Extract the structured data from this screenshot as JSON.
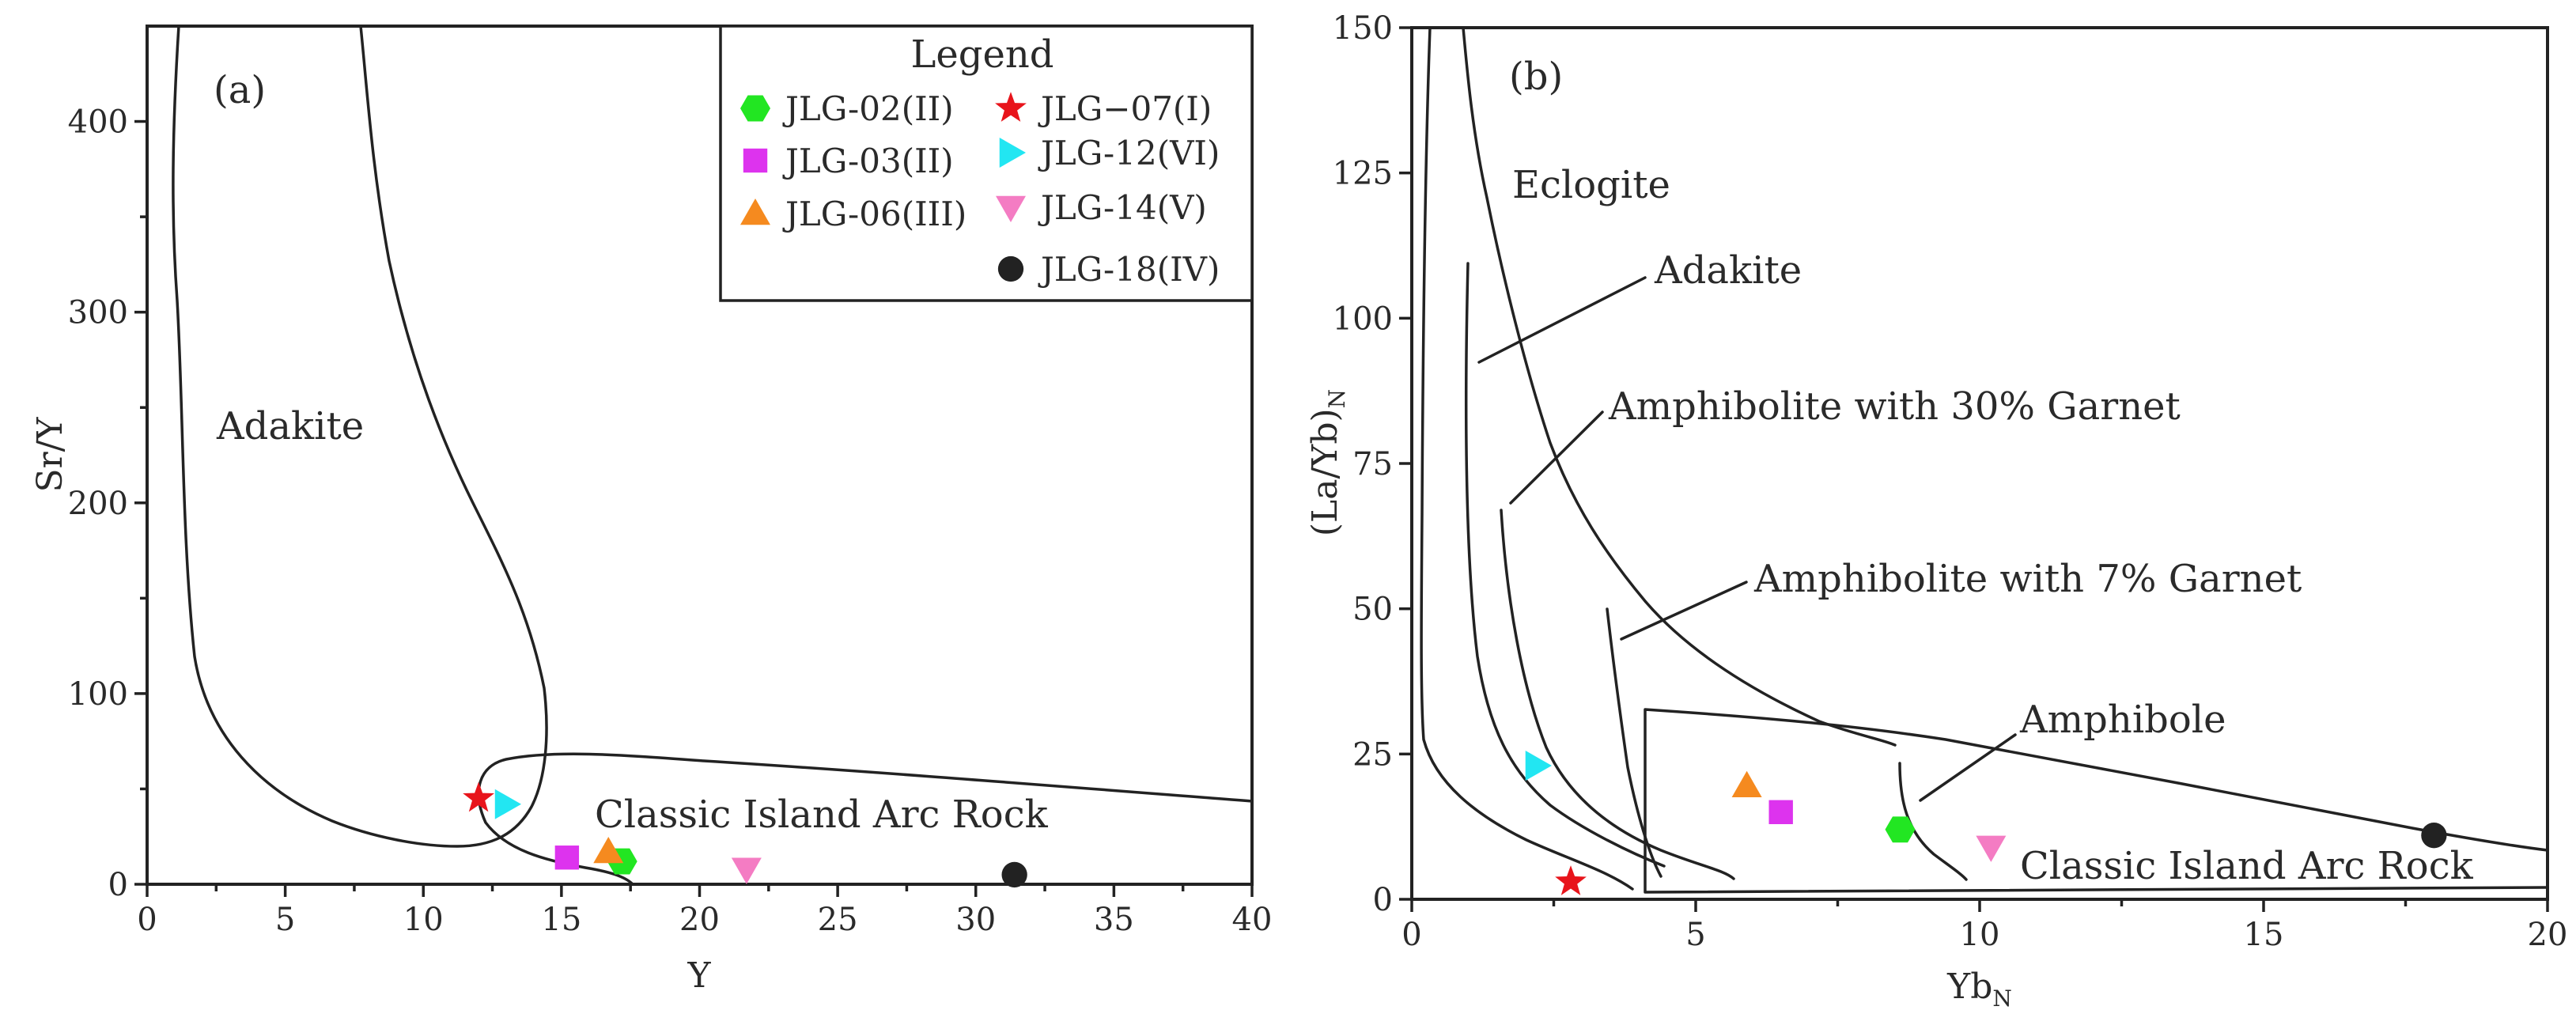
{
  "colors": {
    "JLG-02(II)": "#22e622",
    "JLG-03(II)": "#dd33ee",
    "JLG-06(III)": "#f58a1f",
    "JLG-07(I)": "#e8141b",
    "JLG-12(VI)": "#22e6f2",
    "JLG-14(V)": "#f47cc3",
    "JLG-18(IV)": "#222222"
  },
  "legend": {
    "title": "Legend",
    "entries": [
      {
        "name": "JLG-02(II)",
        "marker": "hexagon"
      },
      {
        "name": "JLG-03(II)",
        "marker": "square"
      },
      {
        "name": "JLG-06(III)",
        "marker": "triangle-up"
      },
      {
        "name": "JLG−07(I)",
        "marker": "star"
      },
      {
        "name": "JLG-12(VI)",
        "marker": "triangle-right"
      },
      {
        "name": "JLG-14(V)",
        "marker": "triangle-down"
      },
      {
        "name": "JLG-18(IV)",
        "marker": "circle"
      }
    ]
  },
  "chart_data": [
    {
      "type": "scatter",
      "panel_label": "(a)",
      "xlabel": "Y",
      "ylabel": "Sr/Y",
      "xlim": [
        0,
        40
      ],
      "ylim": [
        0,
        450
      ],
      "xticks": [
        0,
        5,
        10,
        15,
        20,
        25,
        30,
        35,
        40
      ],
      "yticks": [
        0,
        100,
        200,
        300,
        400
      ],
      "fields": [
        "Adakite",
        "Classic Island Arc Rock"
      ],
      "series": [
        {
          "name": "JLG-02(II)",
          "x": 17.2,
          "y": 12
        },
        {
          "name": "JLG-03(II)",
          "x": 15.2,
          "y": 14
        },
        {
          "name": "JLG-06(III)",
          "x": 16.7,
          "y": 17
        },
        {
          "name": "JLG-07(I)",
          "x": 12.0,
          "y": 45
        },
        {
          "name": "JLG-12(VI)",
          "x": 13.0,
          "y": 42
        },
        {
          "name": "JLG-14(V)",
          "x": 21.7,
          "y": 8
        },
        {
          "name": "JLG-18(IV)",
          "x": 31.4,
          "y": 5
        }
      ]
    },
    {
      "type": "scatter",
      "panel_label": "(b)",
      "xlabel": "Yb",
      "xlabel_sub": "N",
      "ylabel": "(La/Yb)",
      "ylabel_sub": "N",
      "xlim": [
        0,
        20
      ],
      "ylim": [
        0,
        150
      ],
      "xticks": [
        0,
        5,
        10,
        15,
        20
      ],
      "yticks": [
        0,
        25,
        50,
        75,
        100,
        125,
        150
      ],
      "fields": [
        "Eclogite",
        "Adakite",
        "Amphibolite with 30% Garnet",
        "Amphibolite with 7% Garnet",
        "Amphibole",
        "Classic Island Arc Rock"
      ],
      "series": [
        {
          "name": "JLG-02(II)",
          "x": 8.6,
          "y": 12
        },
        {
          "name": "JLG-03(II)",
          "x": 6.5,
          "y": 15
        },
        {
          "name": "JLG-06(III)",
          "x": 5.9,
          "y": 19.5
        },
        {
          "name": "JLG-07(I)",
          "x": 2.8,
          "y": 3
        },
        {
          "name": "JLG-12(VI)",
          "x": 2.2,
          "y": 23
        },
        {
          "name": "JLG-14(V)",
          "x": 10.2,
          "y": 9
        },
        {
          "name": "JLG-18(IV)",
          "x": 18.0,
          "y": 11
        }
      ]
    }
  ]
}
